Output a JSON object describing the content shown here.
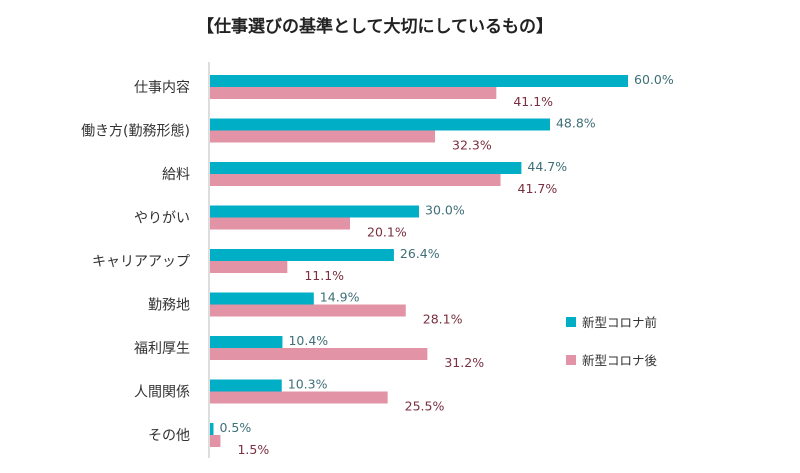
{
  "chart_data": {
    "type": "bar",
    "orientation": "horizontal",
    "title": "【仕事選びの基準として大切にしているもの】",
    "categories": [
      "仕事内容",
      "働き方(勤務形態)",
      "給料",
      "やりがい",
      "キャリアアップ",
      "勤務地",
      "福利厚生",
      "人間関係",
      "その他"
    ],
    "series": [
      {
        "name": "新型コロナ前",
        "color": "#00AEC6",
        "values": [
          60.0,
          48.8,
          44.7,
          30.0,
          26.4,
          14.9,
          10.4,
          10.3,
          0.5
        ]
      },
      {
        "name": "新型コロナ後",
        "color": "#E293A6",
        "values": [
          41.1,
          32.3,
          41.7,
          20.1,
          11.1,
          28.1,
          31.2,
          25.5,
          1.5
        ]
      }
    ],
    "value_suffix": "%",
    "xlim": [
      0,
      60
    ],
    "grid": false,
    "legend_position": "right"
  }
}
